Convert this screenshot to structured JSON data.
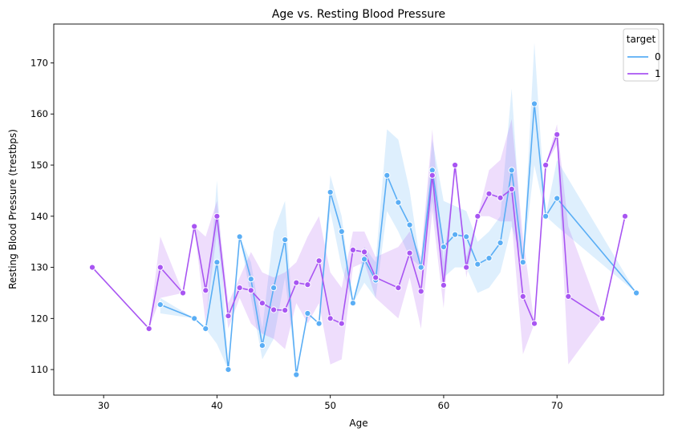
{
  "chart_data": {
    "type": "line",
    "title": "Age vs. Resting Blood Pressure",
    "xlabel": "Age",
    "ylabel": "Resting Blood Pressure (trestbps)",
    "xlim": [
      25.6,
      79.4
    ],
    "ylim": [
      105,
      177.6
    ],
    "xticks": [
      30,
      40,
      50,
      60,
      70
    ],
    "yticks": [
      110,
      120,
      130,
      140,
      150,
      160,
      170
    ],
    "grid": false,
    "legend": {
      "title": "target",
      "placement": "top-right"
    },
    "series": [
      {
        "name": "0",
        "color": "#5aaef5",
        "x": [
          35,
          38,
          39,
          40,
          41,
          42,
          43,
          44,
          45,
          46,
          47,
          48,
          49,
          50,
          51,
          52,
          53,
          54,
          55,
          56,
          57,
          58,
          59,
          60,
          61,
          62,
          63,
          64,
          65,
          66,
          67,
          68,
          69,
          70,
          77
        ],
        "y": [
          122.7,
          120,
          118,
          131,
          110,
          136,
          127.7,
          114.7,
          126,
          135.4,
          109,
          121,
          119,
          144.7,
          137,
          123,
          131.6,
          127.5,
          148,
          142.7,
          138.3,
          130,
          149,
          134,
          136.4,
          136,
          130.6,
          131.8,
          134.8,
          149,
          131,
          162,
          140,
          143.5,
          125
        ],
        "ci_low": [
          121,
          120,
          118,
          115,
          110,
          136,
          124,
          112,
          116,
          128,
          109,
          121,
          119,
          141,
          130,
          123,
          127,
          124,
          141,
          137,
          132,
          130,
          143,
          128,
          130,
          130,
          125,
          126,
          129,
          138,
          131,
          150,
          140,
          138,
          125
        ],
        "ci_high": [
          124,
          120,
          118,
          147,
          110,
          136,
          131,
          118,
          137,
          143,
          109,
          121,
          119,
          148,
          140,
          123,
          134,
          131,
          157,
          155,
          145,
          130,
          155,
          143,
          142,
          141,
          135,
          137,
          140,
          165,
          131,
          174,
          140,
          151,
          125
        ]
      },
      {
        "name": "1",
        "color": "#a855f2",
        "x": [
          29,
          34,
          35,
          37,
          38,
          39,
          40,
          41,
          42,
          43,
          44,
          45,
          46,
          47,
          48,
          49,
          50,
          51,
          52,
          53,
          54,
          56,
          57,
          58,
          59,
          60,
          61,
          62,
          63,
          64,
          65,
          66,
          67,
          68,
          69,
          70,
          71,
          74,
          76
        ],
        "y": [
          130,
          118,
          130,
          125,
          138,
          125.5,
          140,
          120.5,
          126,
          125.5,
          123,
          121.7,
          121.6,
          127,
          126.6,
          131.3,
          120,
          119,
          133.4,
          133,
          128,
          126,
          132.8,
          125.3,
          148,
          126.5,
          150,
          130,
          140,
          144.4,
          143.6,
          145.3,
          124.3,
          119,
          150,
          156,
          124.3,
          120,
          140
        ],
        "ci_low": [
          130,
          118,
          124,
          125,
          138,
          119,
          137,
          118,
          124,
          119,
          117,
          116,
          114,
          123,
          119,
          123,
          111,
          112,
          130,
          131,
          124,
          120,
          128,
          118,
          141,
          122,
          150,
          128,
          140,
          140,
          139,
          139,
          113,
          119,
          150,
          154,
          111,
          120,
          140
        ],
        "ci_high": [
          130,
          118,
          136,
          125,
          138,
          136,
          143,
          123,
          128,
          133,
          129,
          128,
          129,
          131,
          136,
          140,
          129,
          126,
          137,
          137,
          132,
          134,
          137,
          132,
          157,
          131,
          150,
          132,
          140,
          149,
          151,
          159,
          136,
          119,
          150,
          158,
          138,
          120,
          140
        ]
      }
    ]
  }
}
